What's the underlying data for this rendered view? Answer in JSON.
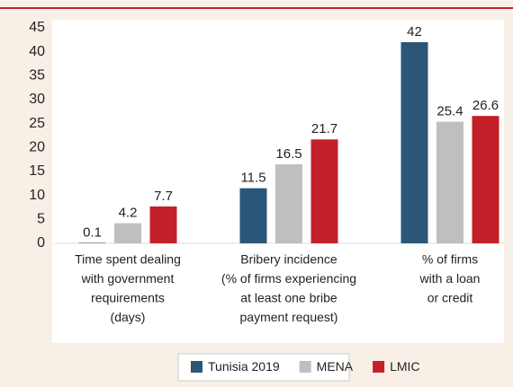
{
  "chart_data": {
    "type": "bar",
    "categories": [
      [
        "Time spent dealing",
        "with government",
        "requirements",
        "(days)"
      ],
      [
        "Bribery incidence",
        "(% of firms experiencing",
        "at least one bribe",
        "payment request)"
      ],
      [
        "% of firms",
        "with a loan",
        "or credit"
      ]
    ],
    "series": [
      {
        "name": "Tunisia 2019",
        "color": "#2b5677",
        "values": [
          0.1,
          11.5,
          42
        ]
      },
      {
        "name": "MENA",
        "color": "#bfbfbf",
        "values": [
          4.2,
          16.5,
          25.4
        ]
      },
      {
        "name": "LMIC",
        "color": "#c3202a",
        "values": [
          7.7,
          21.7,
          26.6
        ]
      }
    ],
    "ylim": [
      0,
      45
    ],
    "yticks": [
      0,
      5,
      10,
      15,
      20,
      25,
      30,
      35,
      40,
      45
    ],
    "legend": "bottom"
  }
}
